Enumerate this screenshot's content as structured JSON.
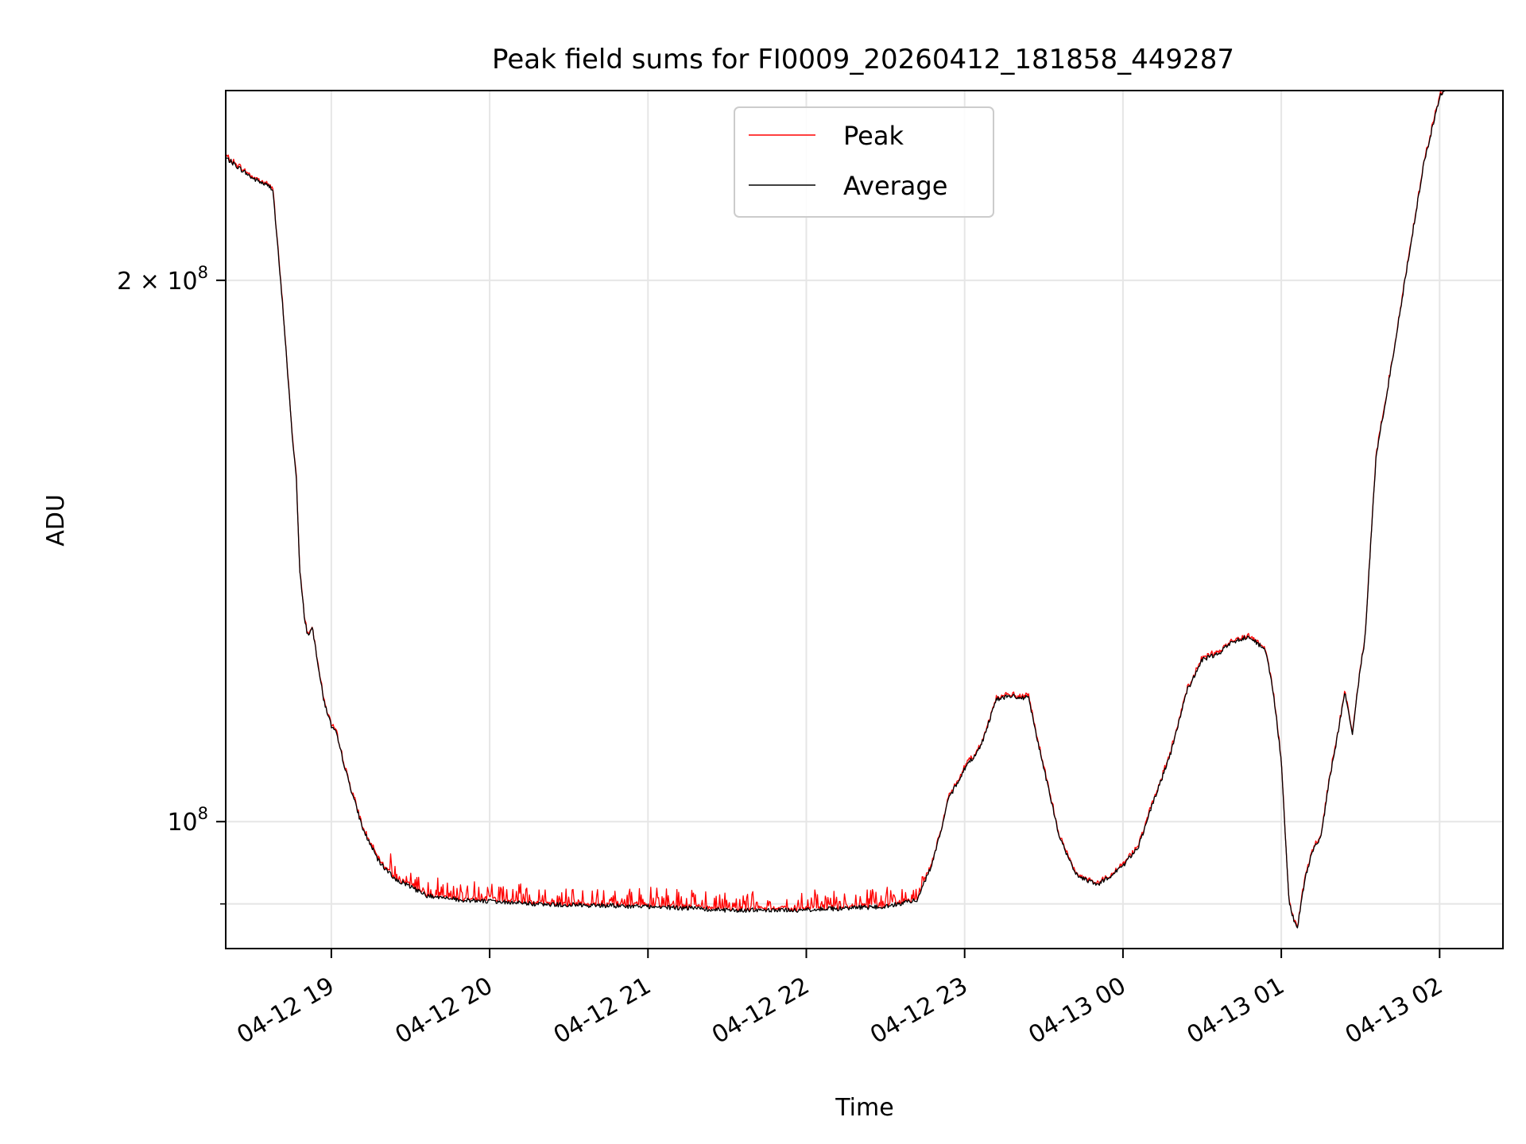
{
  "chart_data": {
    "type": "line",
    "title": "Peak field sums for FI0009_20260412_181858_449287",
    "xlabel": "Time",
    "ylabel": "ADU",
    "yscale": "log",
    "grid": true,
    "legend_position": "upper-center",
    "xlim_hours": [
      18.333,
      26.4
    ],
    "ylim": [
      85000000,
      255000000
    ],
    "x_ticks": [
      {
        "label": "04-12 19",
        "hours": 19
      },
      {
        "label": "04-12 20",
        "hours": 20
      },
      {
        "label": "04-12 21",
        "hours": 21
      },
      {
        "label": "04-12 22",
        "hours": 22
      },
      {
        "label": "04-12 23",
        "hours": 23
      },
      {
        "label": "04-13 00",
        "hours": 24
      },
      {
        "label": "04-13 01",
        "hours": 25
      },
      {
        "label": "04-13 02",
        "hours": 26
      }
    ],
    "y_ticks": [
      {
        "value": 200000000,
        "mantissa": "2",
        "times": "×",
        "base": "10",
        "exp": "8"
      },
      {
        "value": 100000000,
        "mantissa": "",
        "times": "",
        "base": "10",
        "exp": "8"
      }
    ],
    "y_minor_ticks": [
      90000000
    ],
    "series": [
      {
        "name": "Peak",
        "color": "#ff0000",
        "spike_region_hours": [
          19.35,
          22.75
        ],
        "spike_value_ratio": 1.025
      },
      {
        "name": "Average",
        "color": "#000000",
        "x_hours": [
          18.333,
          18.5,
          18.63,
          18.7,
          18.75,
          18.78,
          18.8,
          18.83,
          18.85,
          18.88,
          18.9,
          18.95,
          19.0,
          19.03,
          19.1,
          19.2,
          19.3,
          19.4,
          19.6,
          19.8,
          20.0,
          20.3,
          20.5,
          21.0,
          21.5,
          22.0,
          22.5,
          22.7,
          22.8,
          22.9,
          23.0,
          23.1,
          23.2,
          23.3,
          23.35,
          23.4,
          23.5,
          23.6,
          23.7,
          23.8,
          23.85,
          23.9,
          24.0,
          24.1,
          24.2,
          24.3,
          24.4,
          24.5,
          24.6,
          24.7,
          24.8,
          24.9,
          24.95,
          25.0,
          25.05,
          25.1,
          25.15,
          25.2,
          25.25,
          25.3,
          25.35,
          25.4,
          25.45,
          25.5,
          25.53,
          25.55,
          25.58,
          25.6,
          25.7,
          25.8,
          25.9,
          26.0,
          26.05
        ],
        "values": [
          234000000,
          228000000,
          225000000,
          190000000,
          165000000,
          155000000,
          138000000,
          130000000,
          127000000,
          128000000,
          125000000,
          117000000,
          113000000,
          112000000,
          106000000,
          99000000,
          95000000,
          93000000,
          91000000,
          90500000,
          90300000,
          90000000,
          89900000,
          89700000,
          89300000,
          89300000,
          89700000,
          90500000,
          95000000,
          103000000,
          107000000,
          110000000,
          117000000,
          117500000,
          117000000,
          117500000,
          107000000,
          98000000,
          93500000,
          92500000,
          92300000,
          93000000,
          94500000,
          97000000,
          103000000,
          109000000,
          118000000,
          123000000,
          124000000,
          126000000,
          126800000,
          124500000,
          118000000,
          108000000,
          90000000,
          87000000,
          93000000,
          96500000,
          98000000,
          105000000,
          111000000,
          118000000,
          112000000,
          122000000,
          126500000,
          136000000,
          150000000,
          160000000,
          180000000,
          205000000,
          232000000,
          253000000,
          256000000
        ]
      }
    ]
  }
}
